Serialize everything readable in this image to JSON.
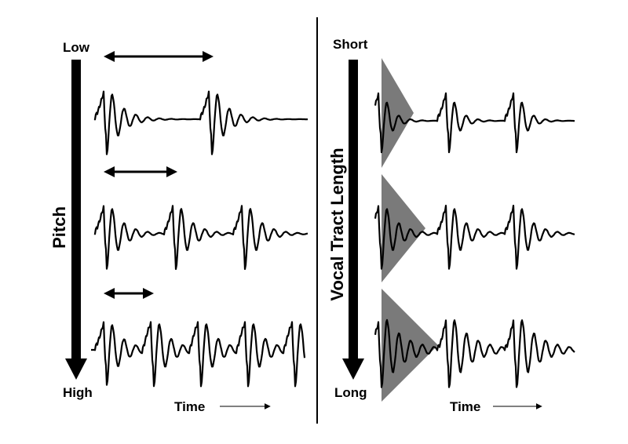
{
  "left_panel": {
    "axis_title": "Pitch",
    "top_label": "Low",
    "bottom_label": "High",
    "time_label": "Time",
    "waveforms": [
      {
        "pulses": 2
      },
      {
        "pulses": 3
      },
      {
        "pulses": 5
      }
    ]
  },
  "right_panel": {
    "axis_title": "Vocal Tract Length",
    "top_label": "Short",
    "bottom_label": "Long",
    "time_label": "Time",
    "waveforms": [
      {
        "pulses": 3
      },
      {
        "pulses": 3
      },
      {
        "pulses": 3
      }
    ]
  },
  "colors": {
    "ink": "#000000",
    "triangle_fill": "#7a7a7a",
    "background": "#ffffff"
  }
}
